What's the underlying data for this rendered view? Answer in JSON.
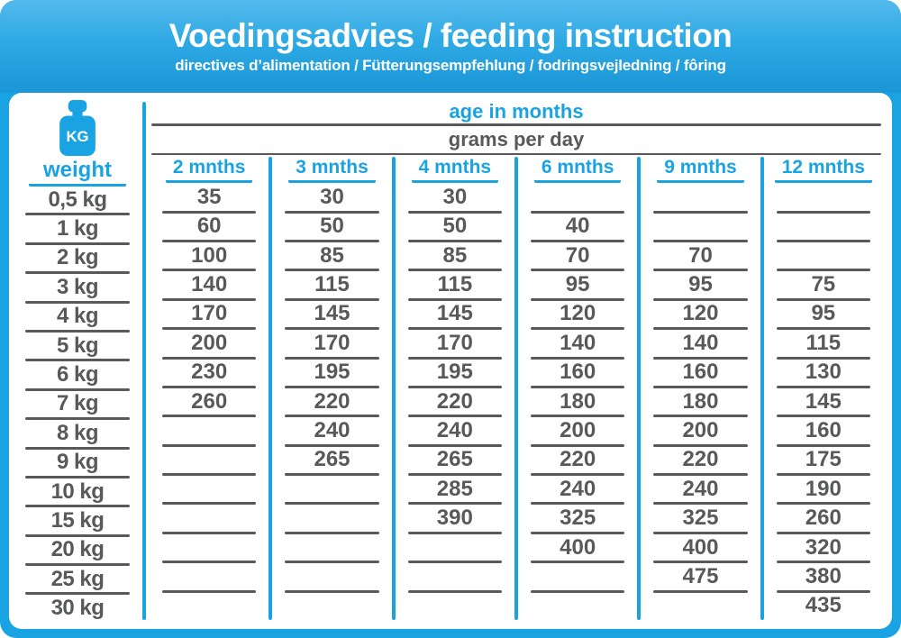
{
  "colors": {
    "accent_blue": "#1aa3e3",
    "banner_gradient_top": "#55baed",
    "banner_gradient_bottom": "#1b96d6",
    "text_gray": "#58595b"
  },
  "header": {
    "title": "Voedingsadvies / feeding instruction",
    "subtitle": "directives d’alimentation / Fütterungsempfehlung / fodringsvejledning / fôring"
  },
  "table": {
    "age_header": "age in months",
    "grams_header": "grams per day",
    "weight_header": "weight",
    "kg_icon_label": "KG",
    "weights": [
      "0,5 kg",
      "1 kg",
      "2 kg",
      "3 kg",
      "4 kg",
      "5 kg",
      "6 kg",
      "7 kg",
      "8 kg",
      "9 kg",
      "10 kg",
      "15 kg",
      "20 kg",
      "25 kg",
      "30 kg"
    ],
    "columns": [
      {
        "label": "2 mnths",
        "values": [
          "35",
          "60",
          "100",
          "140",
          "170",
          "200",
          "230",
          "260",
          "",
          "",
          "",
          "",
          "",
          "",
          ""
        ]
      },
      {
        "label": "3 mnths",
        "values": [
          "30",
          "50",
          "85",
          "115",
          "145",
          "170",
          "195",
          "220",
          "240",
          "265",
          "",
          "",
          "",
          "",
          ""
        ]
      },
      {
        "label": "4 mnths",
        "values": [
          "30",
          "50",
          "85",
          "115",
          "145",
          "170",
          "195",
          "220",
          "240",
          "265",
          "285",
          "390",
          "",
          "",
          ""
        ]
      },
      {
        "label": "6 mnths",
        "values": [
          "",
          "40",
          "70",
          "95",
          "120",
          "140",
          "160",
          "180",
          "200",
          "220",
          "240",
          "325",
          "400",
          "",
          ""
        ]
      },
      {
        "label": "9 mnths",
        "values": [
          "",
          "",
          "70",
          "95",
          "120",
          "140",
          "160",
          "180",
          "200",
          "220",
          "240",
          "325",
          "400",
          "475",
          ""
        ]
      },
      {
        "label": "12 mnths",
        "values": [
          "",
          "",
          "",
          "75",
          "95",
          "115",
          "130",
          "145",
          "160",
          "175",
          "190",
          "260",
          "320",
          "380",
          "435"
        ]
      }
    ]
  }
}
